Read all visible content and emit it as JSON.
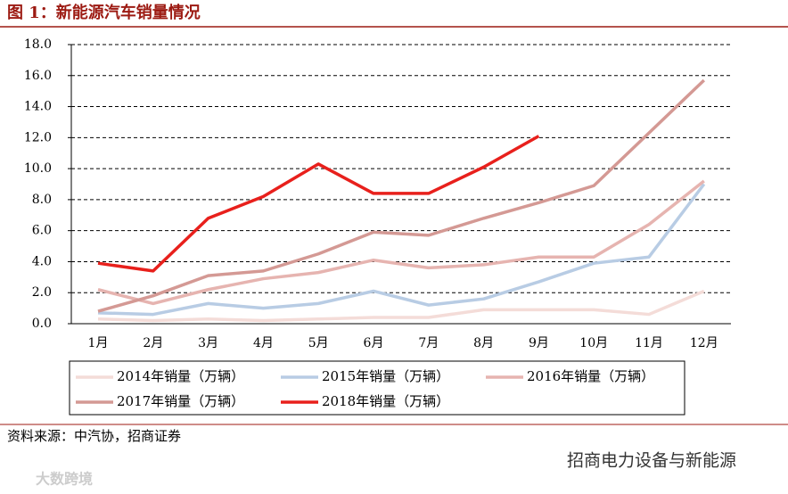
{
  "chart_data": {
    "type": "line",
    "title": "图 1：新能源汽车销量情况",
    "categories": [
      "1月",
      "2月",
      "3月",
      "4月",
      "5月",
      "6月",
      "7月",
      "8月",
      "9月",
      "10月",
      "11月",
      "12月"
    ],
    "series": [
      {
        "name": "2014年销量（万辆）",
        "color": "#f4dcd8",
        "values": [
          0.3,
          0.2,
          0.3,
          0.2,
          0.3,
          0.4,
          0.4,
          0.9,
          0.9,
          0.9,
          0.6,
          2.1
        ]
      },
      {
        "name": "2015年销量（万辆）",
        "color": "#b8cce4",
        "values": [
          0.7,
          0.6,
          1.3,
          1.0,
          1.3,
          2.1,
          1.2,
          1.6,
          2.7,
          3.9,
          4.3,
          9.0
        ]
      },
      {
        "name": "2016年销量（万辆）",
        "color": "#e6b4b0",
        "values": [
          2.2,
          1.3,
          2.2,
          2.9,
          3.3,
          4.1,
          3.6,
          3.8,
          4.3,
          4.3,
          6.4,
          9.2
        ]
      },
      {
        "name": "2017年销量（万辆）",
        "color": "#d49994",
        "values": [
          0.8,
          1.8,
          3.1,
          3.4,
          4.5,
          5.9,
          5.7,
          6.8,
          7.8,
          8.9,
          12.3,
          15.7
        ]
      },
      {
        "name": "2018年销量（万辆）",
        "color": "#e8201c",
        "values": [
          3.9,
          3.4,
          6.8,
          8.2,
          10.3,
          8.4,
          8.4,
          10.1,
          12.1,
          null,
          null,
          null
        ]
      }
    ],
    "ylim": [
      0,
      18
    ],
    "yticks": [
      {
        "value": 0,
        "label": "0.0"
      },
      {
        "value": 2,
        "label": "2.0"
      },
      {
        "value": 4,
        "label": "4.0"
      },
      {
        "value": 6,
        "label": "6.0"
      },
      {
        "value": 8,
        "label": "8.0"
      },
      {
        "value": 10,
        "label": "10.0"
      },
      {
        "value": 12,
        "label": "12.0"
      },
      {
        "value": 14,
        "label": "14.0"
      },
      {
        "value": 16,
        "label": "16.0"
      },
      {
        "value": 18,
        "label": "18.0"
      }
    ],
    "grid": true,
    "source": "资料来源：中汽协，招商证券",
    "watermark": "招商电力设备与新能源",
    "watermark2": "大数跨境"
  }
}
